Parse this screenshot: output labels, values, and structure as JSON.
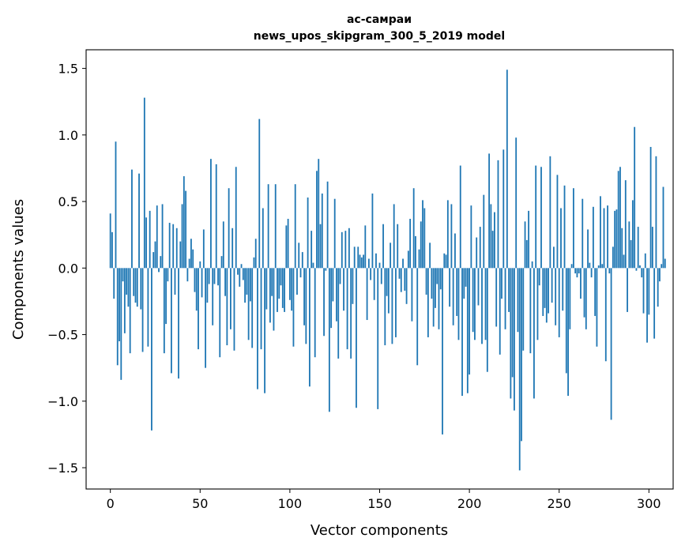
{
  "chart_data": {
    "type": "bar",
    "title": "ас-самраи\nnews_upos_skipgram_300_5_2019 model",
    "title_lines": [
      "ас-самраи",
      "news_upos_skipgram_300_5_2019 model"
    ],
    "xlabel": "Vector components",
    "ylabel": "Components values",
    "xlim": [
      -13.5,
      313.5
    ],
    "ylim": [
      -1.66,
      1.64
    ],
    "xticks": [
      0,
      50,
      100,
      150,
      200,
      250,
      300
    ],
    "yticks": [
      -1.5,
      -1.0,
      -0.5,
      0.0,
      0.5,
      1.0,
      1.5
    ],
    "ytick_labels": [
      "−1.5",
      "−1.0",
      "−0.5",
      "0.0",
      "0.5",
      "1.0",
      "1.5"
    ],
    "bar_color": "#1f77b4",
    "grid": false,
    "values": [
      0.41,
      0.27,
      -0.23,
      0.95,
      -0.73,
      -0.55,
      -0.84,
      -0.1,
      -0.49,
      -0.2,
      -0.29,
      -0.64,
      0.74,
      -0.21,
      -0.26,
      -0.29,
      0.71,
      -0.31,
      -0.63,
      1.28,
      0.38,
      -0.59,
      0.43,
      -1.22,
      0.12,
      0.2,
      0.47,
      -0.03,
      0.09,
      0.48,
      -0.64,
      -0.42,
      -0.1,
      0.34,
      -0.79,
      0.33,
      -0.2,
      0.3,
      -0.83,
      0.2,
      0.48,
      0.69,
      0.58,
      -0.1,
      0.07,
      0.22,
      0.14,
      -0.18,
      -0.32,
      -0.61,
      0.05,
      -0.22,
      0.29,
      -0.75,
      -0.26,
      -0.12,
      0.82,
      -0.43,
      -0.12,
      0.78,
      -0.13,
      -0.67,
      0.09,
      0.35,
      -0.21,
      -0.58,
      0.6,
      -0.46,
      0.3,
      -0.62,
      0.76,
      -0.05,
      -0.14,
      0.03,
      -0.09,
      -0.26,
      -0.2,
      -0.54,
      -0.25,
      -0.6,
      0.08,
      0.22,
      -0.91,
      1.12,
      -0.61,
      0.45,
      -0.94,
      -0.31,
      0.63,
      -0.41,
      -0.21,
      -0.47,
      0.63,
      -0.33,
      -0.23,
      -0.13,
      -0.3,
      -0.33,
      0.32,
      0.37,
      -0.24,
      -0.32,
      -0.59,
      0.63,
      -0.2,
      0.19,
      -0.07,
      0.12,
      -0.43,
      -0.57,
      0.53,
      -0.89,
      0.28,
      0.04,
      -0.67,
      0.73,
      0.82,
      0.33,
      0.56,
      -0.51,
      -0.02,
      0.65,
      -1.08,
      -0.45,
      -0.25,
      0.52,
      -0.4,
      -0.68,
      -0.12,
      0.27,
      -0.32,
      0.28,
      -0.61,
      0.3,
      -0.68,
      -0.27,
      0.16,
      -1.05,
      0.16,
      0.1,
      0.08,
      0.1,
      0.32,
      -0.39,
      0.07,
      -0.09,
      0.56,
      -0.24,
      0.11,
      -1.06,
      0.04,
      -0.12,
      0.33,
      -0.58,
      -0.21,
      -0.34,
      0.19,
      -0.57,
      0.48,
      -0.52,
      0.33,
      -0.08,
      -0.18,
      0.07,
      -0.17,
      -0.27,
      0.13,
      0.37,
      -0.4,
      0.6,
      0.24,
      -0.73,
      0.14,
      0.35,
      0.51,
      0.45,
      -0.2,
      -0.52,
      0.19,
      -0.23,
      -0.44,
      -0.3,
      -0.12,
      -0.46,
      -0.16,
      -1.25,
      0.11,
      0.1,
      0.51,
      -0.29,
      0.48,
      -0.43,
      0.26,
      -0.36,
      -0.54,
      0.77,
      -0.96,
      -0.23,
      -0.14,
      -0.94,
      -0.8,
      0.47,
      -0.48,
      -0.54,
      0.23,
      -0.28,
      0.31,
      -0.57,
      0.55,
      -0.54,
      -0.78,
      0.86,
      0.48,
      0.28,
      0.42,
      -0.44,
      0.81,
      -0.65,
      -0.23,
      0.89,
      -0.46,
      1.49,
      -0.33,
      -0.98,
      -0.82,
      -1.07,
      0.98,
      -0.48,
      -1.52,
      -1.3,
      -0.62,
      0.35,
      0.21,
      0.43,
      -0.64,
      0.05,
      -0.98,
      0.77,
      -0.54,
      -0.13,
      0.76,
      -0.36,
      -0.3,
      -0.41,
      -0.34,
      0.84,
      -0.26,
      0.16,
      -0.43,
      0.7,
      -0.52,
      0.45,
      -0.32,
      0.62,
      -0.79,
      -0.96,
      -0.46,
      0.03,
      0.6,
      -0.04,
      -0.07,
      -0.04,
      -0.23,
      0.52,
      -0.37,
      -0.46,
      0.29,
      0.04,
      -0.07,
      0.46,
      -0.36,
      -0.59,
      0.02,
      0.54,
      0.03,
      0.45,
      -0.7,
      0.47,
      -0.04,
      -1.14,
      0.16,
      0.43,
      0.44,
      0.73,
      0.76,
      0.3,
      0.1,
      0.66,
      -0.33,
      0.35,
      0.21,
      0.51,
      1.06,
      -0.02,
      0.31,
      0.02,
      -0.07,
      -0.34,
      0.11,
      -0.56,
      -0.35,
      0.91,
      0.31,
      -0.53,
      0.84,
      -0.29,
      -0.1,
      0.03,
      0.61,
      0.07
    ]
  }
}
